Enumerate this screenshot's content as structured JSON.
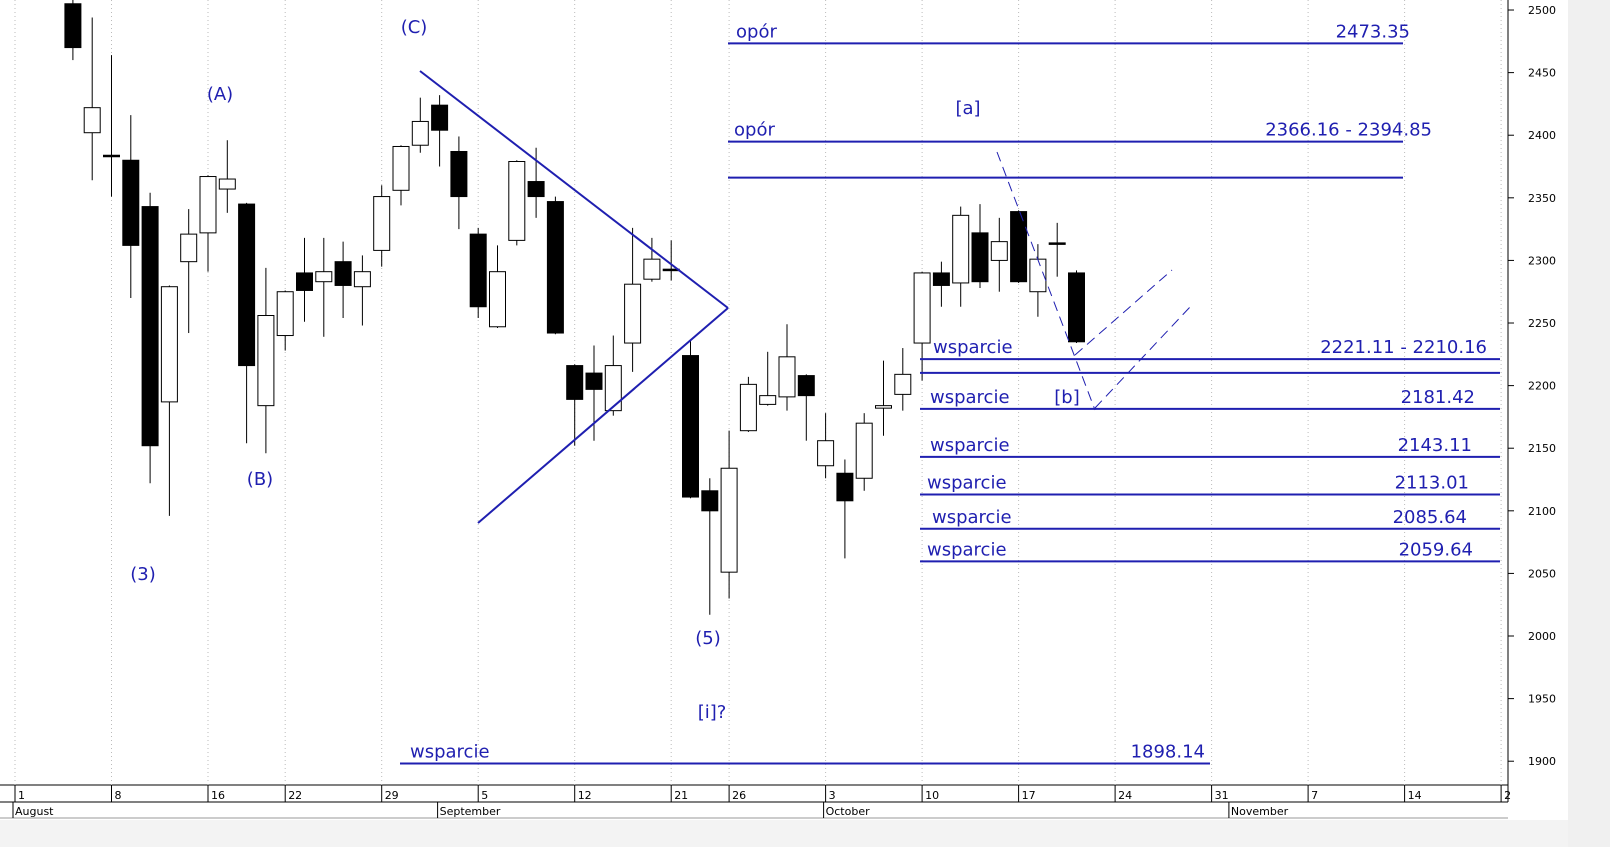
{
  "chart_data": {
    "type": "candlestick",
    "categories": [
      "1",
      null,
      null,
      null,
      null,
      "8",
      null,
      null,
      null,
      null,
      "16",
      null,
      null,
      null,
      "22",
      null,
      null,
      null,
      null,
      "29",
      null,
      null,
      null,
      null,
      "5",
      null,
      null,
      null,
      null,
      "12",
      null,
      null,
      null,
      null,
      "21",
      null,
      null,
      "26",
      null,
      null,
      null,
      null,
      "3",
      null,
      null,
      null,
      null,
      "10",
      null,
      null,
      null,
      null,
      "17",
      null,
      null,
      null,
      null,
      "24",
      null,
      null,
      null,
      null,
      "31",
      null,
      null,
      null,
      null,
      "7",
      null,
      null,
      null,
      null,
      "14",
      null,
      null,
      null,
      null,
      "2"
    ],
    "months": [
      "August",
      null,
      null,
      null,
      null,
      null,
      null,
      null,
      null,
      null,
      null,
      null,
      null,
      null,
      null,
      null,
      null,
      null,
      null,
      null,
      null,
      null,
      "September",
      null,
      null,
      null,
      null,
      null,
      null,
      null,
      null,
      null,
      null,
      null,
      null,
      null,
      null,
      null,
      null,
      null,
      null,
      null,
      "October",
      null,
      null,
      null,
      null,
      null,
      null,
      null,
      null,
      null,
      null,
      null,
      null,
      null,
      null,
      null,
      null,
      null,
      null,
      null,
      null,
      "November",
      null,
      null,
      null,
      null,
      null,
      null,
      null,
      null,
      null,
      null,
      null,
      null,
      null,
      null
    ],
    "open": [
      null,
      null,
      null,
      2505,
      2402,
      2384,
      2380,
      2343,
      2187,
      2299,
      2322,
      2357,
      2345,
      2184,
      2240,
      2290,
      2283,
      2299,
      2279,
      2308,
      2356,
      2392,
      2424,
      2387,
      2321,
      2247,
      2316,
      2363,
      2347,
      2216,
      2210,
      2180,
      2234,
      2285,
      2293,
      2224,
      2116,
      2051,
      2164,
      2185,
      2191,
      2208,
      2136,
      2130,
      2126,
      2182,
      2193,
      2234,
      2290,
      2282,
      2322,
      2300,
      2339,
      2275,
      2314,
      2290,
      null,
      null,
      null,
      null,
      null,
      null,
      null,
      null,
      null,
      null,
      null,
      null,
      null,
      null,
      null,
      null,
      null,
      null,
      null,
      null,
      null,
      null
    ],
    "high": [
      null,
      null,
      null,
      2510,
      2494,
      2464,
      2416,
      2354,
      2280,
      2341,
      2368,
      2396,
      2346,
      2294,
      2276,
      2318,
      2318,
      2315,
      2304,
      2360,
      2392,
      2430,
      2432,
      2399,
      2326,
      2312,
      2380,
      2390,
      2351,
      2217,
      2232,
      2240,
      2326,
      2318,
      2316,
      2236,
      2126,
      2164,
      2207,
      2227,
      2249,
      2209,
      2178,
      2141,
      2178,
      2220,
      2230,
      2291,
      2299,
      2343,
      2345,
      2334,
      2340,
      2313,
      2330,
      2292,
      null,
      null,
      null,
      null,
      null,
      null,
      null,
      null,
      null,
      null,
      null,
      null,
      null,
      null,
      null,
      null,
      null,
      null,
      null,
      null,
      null,
      null
    ],
    "low": [
      null,
      null,
      null,
      2460,
      2364,
      2351,
      2270,
      2122,
      2096,
      2242,
      2291,
      2338,
      2154,
      2146,
      2228,
      2251,
      2239,
      2254,
      2248,
      2295,
      2344,
      2386,
      2375,
      2325,
      2254,
      2246,
      2312,
      2334,
      2241,
      2152,
      2156,
      2176,
      2211,
      2283,
      2284,
      2110,
      2017,
      2030,
      2163,
      2184,
      2180,
      2156,
      2126,
      2062,
      2116,
      2160,
      2180,
      2204,
      2263,
      2263,
      2278,
      2275,
      2282,
      2255,
      2287,
      2234,
      null,
      null,
      null,
      null,
      null,
      null,
      null,
      null,
      null,
      null,
      null,
      null,
      null,
      null,
      null,
      null,
      null,
      null,
      null,
      null,
      null,
      null
    ],
    "close": [
      null,
      null,
      null,
      2470,
      2422,
      2383,
      2312,
      2152,
      2279,
      2321,
      2367,
      2365,
      2216,
      2256,
      2275,
      2276,
      2291,
      2280,
      2291,
      2351,
      2391,
      2411,
      2404,
      2351,
      2263,
      2291,
      2379,
      2351,
      2242,
      2189,
      2197,
      2216,
      2281,
      2301,
      2292,
      2111,
      2100,
      2134,
      2201,
      2192,
      2223,
      2192,
      2156,
      2108,
      2170,
      2184,
      2209,
      2290,
      2280,
      2336,
      2283,
      2315,
      2283,
      2301,
      2313,
      2235,
      null,
      null,
      null,
      null,
      null,
      null,
      null,
      null,
      null,
      null,
      null,
      null,
      null,
      null,
      null,
      null,
      null,
      null,
      null,
      null,
      null,
      null
    ],
    "up_color": "#ffffff",
    "down_color": "#000000",
    "ylim": [
      1881,
      2508
    ],
    "yticks": [
      1900,
      1950,
      2000,
      2050,
      2100,
      2150,
      2200,
      2250,
      2300,
      2350,
      2400,
      2450,
      2500
    ],
    "level_color": "#1f1fb0",
    "levels": [
      {
        "label": "opór",
        "values": [
          2473.35
        ]
      },
      {
        "label": "opór",
        "values": [
          2394.85,
          2366.16
        ],
        "value_label": "2366.16 - 2394.85"
      },
      {
        "label": "wsparcie",
        "values": [
          2221.11,
          2210.16
        ],
        "value_label": "2221.11 - 2210.16"
      },
      {
        "label": "wsparcie",
        "values": [
          2181.42
        ]
      },
      {
        "label": "wsparcie",
        "values": [
          2143.11
        ]
      },
      {
        "label": "wsparcie",
        "values": [
          2113.01
        ]
      },
      {
        "label": "wsparcie",
        "values": [
          2085.64
        ]
      },
      {
        "label": "wsparcie",
        "values": [
          2059.64
        ]
      },
      {
        "label": "wsparcie",
        "values": [
          1898.14
        ]
      }
    ],
    "wave_labels": [
      "(3)",
      "(A)",
      "(B)",
      "(C)",
      "(5)",
      "[i]?",
      "[a]",
      "[b]"
    ]
  }
}
